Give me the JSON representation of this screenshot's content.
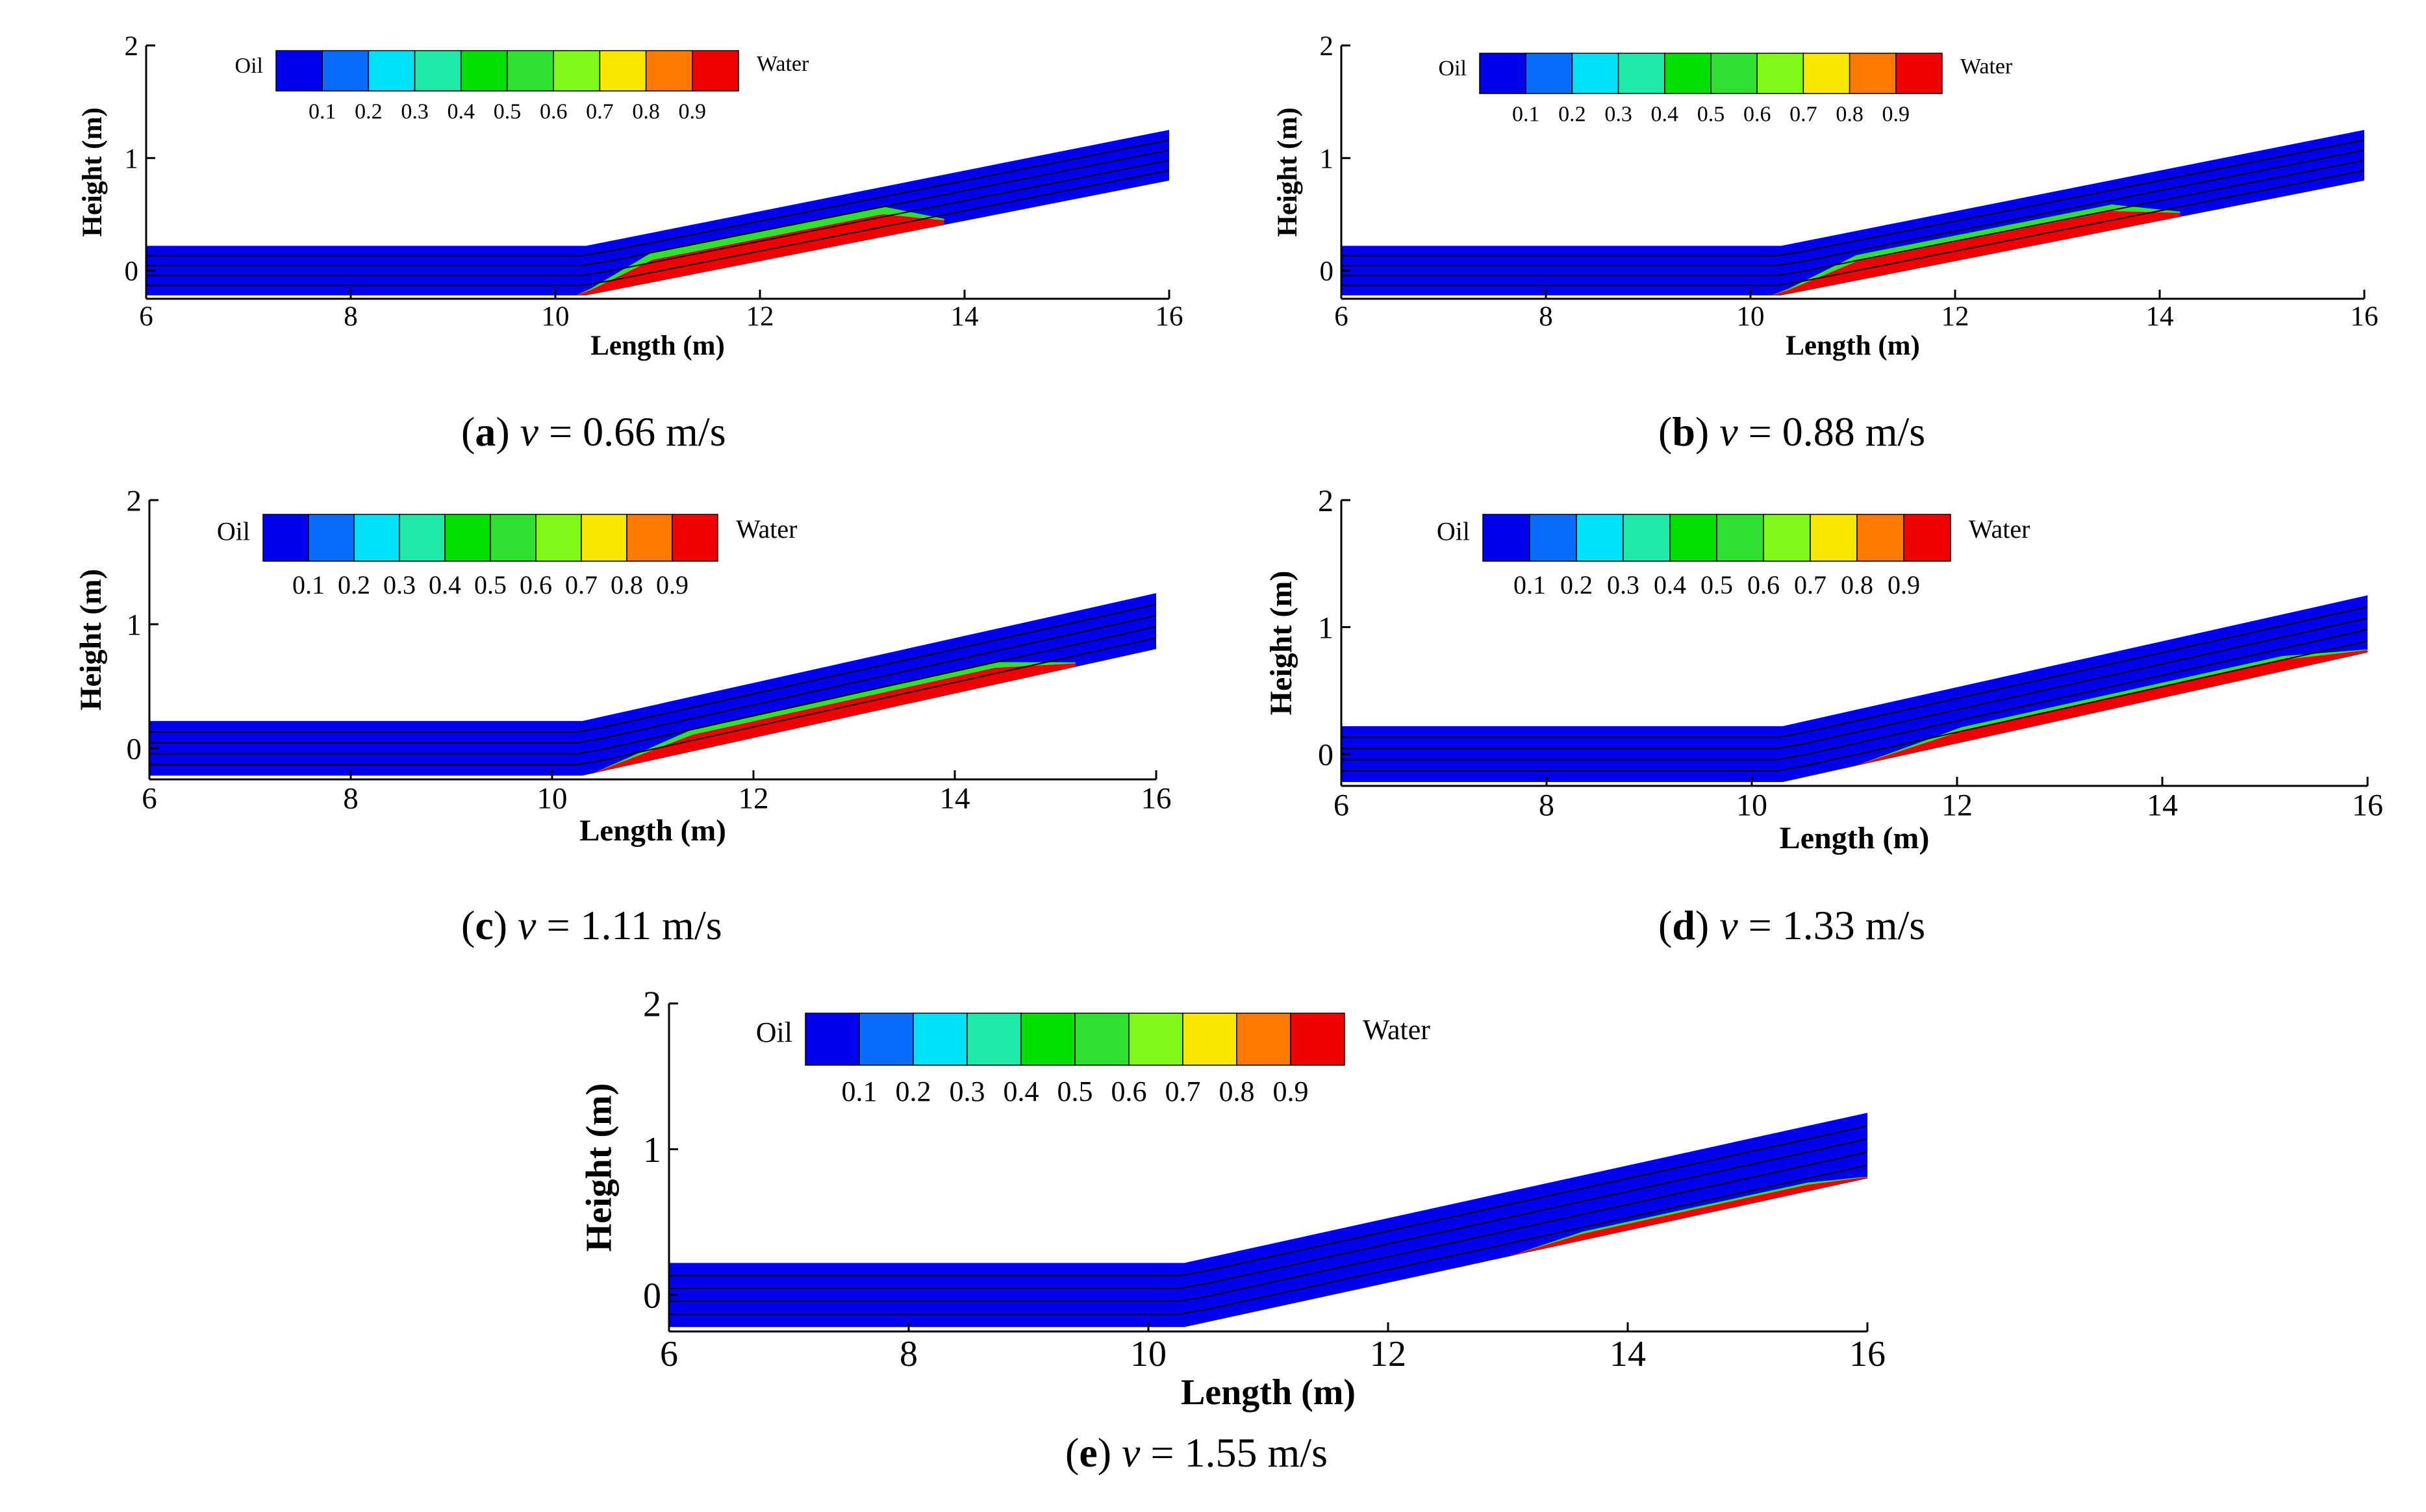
{
  "figure": {
    "colorbar": {
      "left_label": "Oil",
      "right_label": "Water",
      "tick_labels": [
        "0.1",
        "0.2",
        "0.3",
        "0.4",
        "0.5",
        "0.6",
        "0.7",
        "0.8",
        "0.9"
      ],
      "colors": [
        "#0000f0",
        "#0a6cff",
        "#00e0f8",
        "#20e8a8",
        "#00e000",
        "#30e030",
        "#80f818",
        "#f8e800",
        "#ff7800",
        "#f00000"
      ]
    }
  },
  "chart_data": [
    {
      "type": "heatmap",
      "panel_label": "a",
      "caption": {
        "var": "v",
        "rest": " = 0.66 m/s"
      },
      "xlabel": "Length (m)",
      "ylabel": "Height (m)",
      "xlim": [
        6,
        16
      ],
      "ylim": [
        -0.25,
        2
      ],
      "xticks": [
        "6",
        "8",
        "10",
        "12",
        "14",
        "16"
      ],
      "yticks": [
        "0",
        "1",
        "2"
      ],
      "pipe": {
        "horizontal_x": [
          6,
          10.3
        ],
        "incline_end_x": 16,
        "bottom_y": -0.22,
        "top_y": 0.22,
        "end_bottom_y": 0.8,
        "end_top_y": 1.25
      },
      "water_layer": {
        "fraction_of_pipe": 0.45,
        "extent_x": [
          10.2,
          13.8
        ]
      }
    },
    {
      "type": "heatmap",
      "panel_label": "b",
      "caption": {
        "var": "v",
        "rest": " = 0.88 m/s"
      },
      "xlabel": "Length (m)",
      "ylabel": "Height (m)",
      "xlim": [
        6,
        16
      ],
      "ylim": [
        -0.25,
        2
      ],
      "xticks": [
        "6",
        "8",
        "10",
        "12",
        "14",
        "16"
      ],
      "yticks": [
        "0",
        "1",
        "2"
      ],
      "pipe": {
        "horizontal_x": [
          6,
          10.3
        ],
        "incline_end_x": 16,
        "bottom_y": -0.22,
        "top_y": 0.22,
        "end_bottom_y": 0.8,
        "end_top_y": 1.25
      },
      "water_layer": {
        "fraction_of_pipe": 0.38,
        "extent_x": [
          10.2,
          14.2
        ]
      }
    },
    {
      "type": "heatmap",
      "panel_label": "c",
      "caption": {
        "var": "v",
        "rest": " = 1.11 m/s"
      },
      "xlabel": "Length (m)",
      "ylabel": "Height (m)",
      "xlim": [
        6,
        16
      ],
      "ylim": [
        -0.25,
        2
      ],
      "xticks": [
        "6",
        "8",
        "10",
        "12",
        "14",
        "16"
      ],
      "yticks": [
        "0",
        "1",
        "2"
      ],
      "pipe": {
        "horizontal_x": [
          6,
          10.3
        ],
        "incline_end_x": 16,
        "bottom_y": -0.22,
        "top_y": 0.22,
        "end_bottom_y": 0.8,
        "end_top_y": 1.25
      },
      "water_layer": {
        "fraction_of_pipe": 0.3,
        "extent_x": [
          10.4,
          15.2
        ]
      }
    },
    {
      "type": "heatmap",
      "panel_label": "d",
      "caption": {
        "var": "v",
        "rest": " = 1.33 m/s"
      },
      "xlabel": "Length (m)",
      "ylabel": "Height (m)",
      "xlim": [
        6,
        16
      ],
      "ylim": [
        -0.25,
        2
      ],
      "xticks": [
        "6",
        "8",
        "10",
        "12",
        "14",
        "16"
      ],
      "yticks": [
        "0",
        "1",
        "2"
      ],
      "pipe": {
        "horizontal_x": [
          6,
          10.3
        ],
        "incline_end_x": 16,
        "bottom_y": -0.22,
        "top_y": 0.22,
        "end_bottom_y": 0.8,
        "end_top_y": 1.25
      },
      "water_layer": {
        "fraction_of_pipe": 0.2,
        "extent_x": [
          11,
          16
        ]
      }
    },
    {
      "type": "heatmap",
      "panel_label": "e",
      "caption": {
        "var": "v",
        "rest": " = 1.55 m/s"
      },
      "xlabel": "Length (m)",
      "ylabel": "Height (m)",
      "xlim": [
        6,
        16
      ],
      "ylim": [
        -0.25,
        2
      ],
      "xticks": [
        "6",
        "8",
        "10",
        "12",
        "14",
        "16"
      ],
      "yticks": [
        "0",
        "1",
        "2"
      ],
      "pipe": {
        "horizontal_x": [
          6,
          10.3
        ],
        "incline_end_x": 16,
        "bottom_y": -0.22,
        "top_y": 0.22,
        "end_bottom_y": 0.8,
        "end_top_y": 1.25
      },
      "water_layer": {
        "fraction_of_pipe": 0.1,
        "extent_x": [
          13,
          16
        ]
      }
    }
  ]
}
